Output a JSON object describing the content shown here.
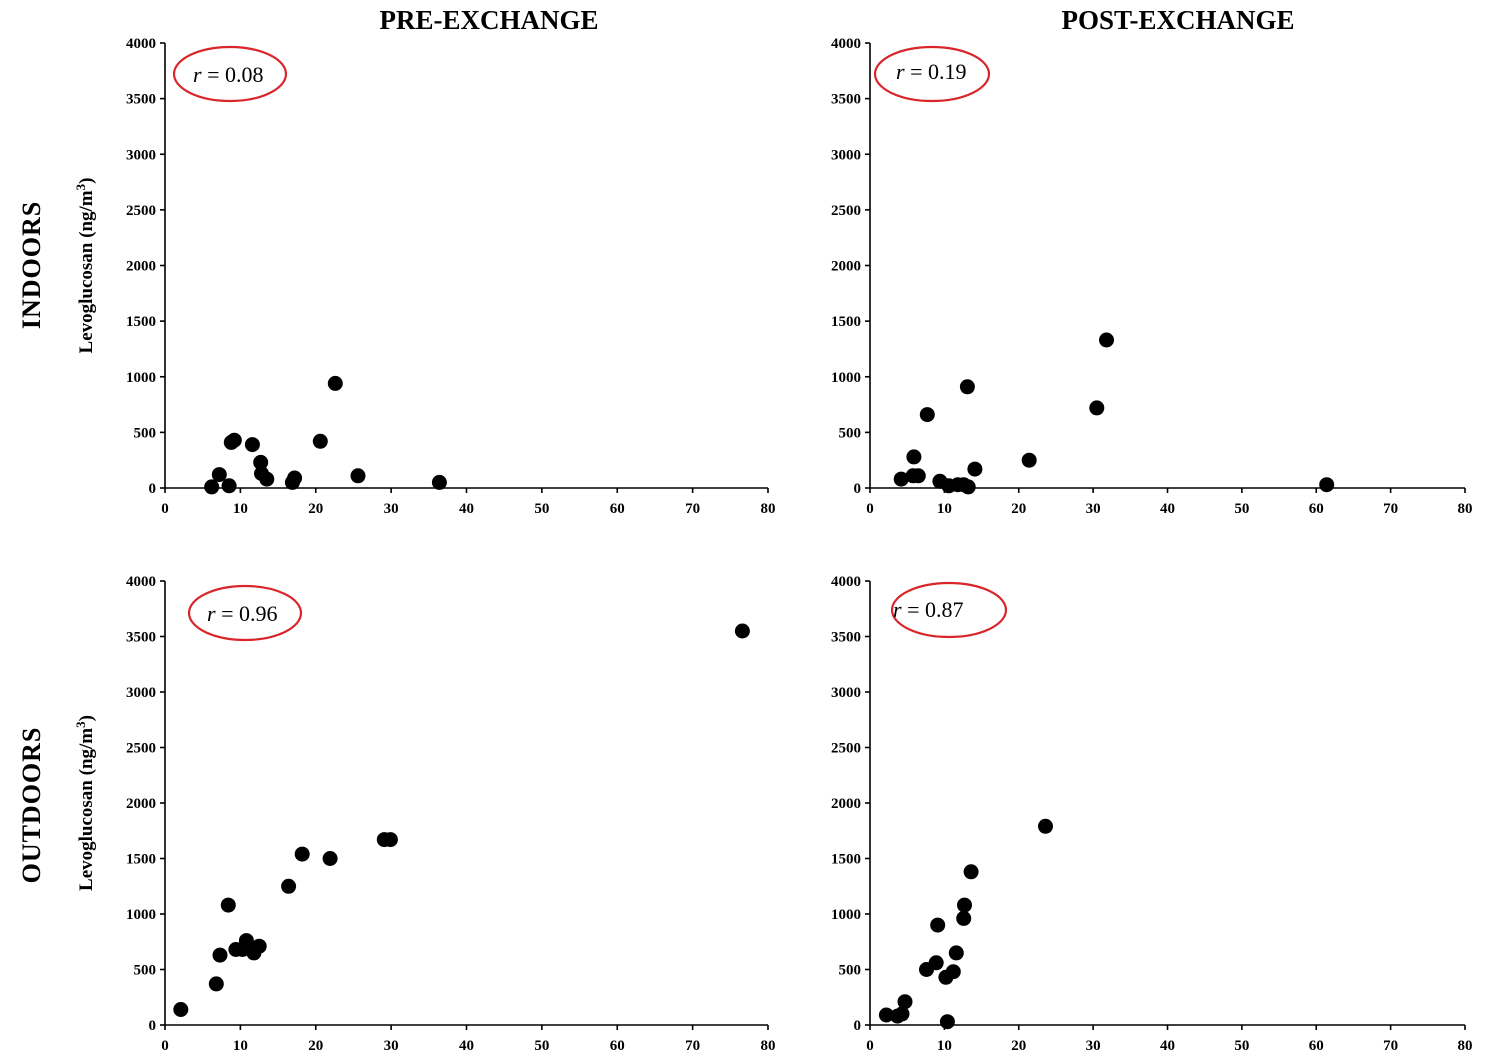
{
  "column_titles": [
    "PRE-EXCHANGE",
    "POST-EXCHANGE"
  ],
  "row_labels": [
    "INDOORS",
    "OUTDOORS"
  ],
  "y_axis_label": {
    "prefix": "Levoglucosan (ng/m",
    "superscript": "3",
    "suffix": ")"
  },
  "accent_color": "#d9262b",
  "chart_data": [
    {
      "type": "scatter",
      "column": "PRE-EXCHANGE",
      "row": "INDOORS",
      "annotation": {
        "r_symbol": "r",
        "equals": " = ",
        "value": "0.08"
      },
      "xlim": [
        0,
        80
      ],
      "ylim": [
        0,
        4000
      ],
      "xticks": [
        0,
        10,
        20,
        30,
        40,
        50,
        60,
        70,
        80
      ],
      "yticks": [
        0,
        500,
        1000,
        1500,
        2000,
        2500,
        3000,
        3500,
        4000
      ],
      "ylabel": "Levoglucosan (ng/m3)",
      "points": [
        [
          6.2,
          10
        ],
        [
          7.2,
          120
        ],
        [
          8.5,
          20
        ],
        [
          8.8,
          410
        ],
        [
          9.2,
          430
        ],
        [
          11.6,
          390
        ],
        [
          12.7,
          230
        ],
        [
          12.8,
          130
        ],
        [
          13.5,
          80
        ],
        [
          16.9,
          50
        ],
        [
          17.2,
          90
        ],
        [
          20.6,
          420
        ],
        [
          22.6,
          940
        ],
        [
          25.6,
          110
        ],
        [
          36.4,
          50
        ]
      ]
    },
    {
      "type": "scatter",
      "column": "POST-EXCHANGE",
      "row": "INDOORS",
      "annotation": {
        "r_symbol": "r",
        "equals": " = ",
        "value": "0.19"
      },
      "xlim": [
        0,
        80
      ],
      "ylim": [
        0,
        4000
      ],
      "xticks": [
        0,
        10,
        20,
        30,
        40,
        50,
        60,
        70,
        80
      ],
      "yticks": [
        0,
        500,
        1000,
        1500,
        2000,
        2500,
        3000,
        3500,
        4000
      ],
      "ylabel": "",
      "points": [
        [
          4.2,
          80
        ],
        [
          5.8,
          110
        ],
        [
          5.9,
          280
        ],
        [
          6.5,
          110
        ],
        [
          7.7,
          660
        ],
        [
          9.4,
          60
        ],
        [
          10.6,
          20
        ],
        [
          11.8,
          30
        ],
        [
          12.6,
          30
        ],
        [
          13.2,
          10
        ],
        [
          13.1,
          910
        ],
        [
          14.1,
          170
        ],
        [
          21.4,
          250
        ],
        [
          30.5,
          720
        ],
        [
          31.8,
          1330
        ],
        [
          61.4,
          30
        ]
      ]
    },
    {
      "type": "scatter",
      "column": "PRE-EXCHANGE",
      "row": "OUTDOORS",
      "annotation": {
        "r_symbol": "r",
        "equals": " = ",
        "value": "0.96"
      },
      "xlim": [
        0,
        80
      ],
      "ylim": [
        0,
        4000
      ],
      "xticks": [
        0,
        10,
        20,
        30,
        40,
        50,
        60,
        70,
        80
      ],
      "yticks": [
        0,
        500,
        1000,
        1500,
        2000,
        2500,
        3000,
        3500,
        4000
      ],
      "ylabel": "Levoglucosan (ng/m3)",
      "points": [
        [
          2.1,
          140
        ],
        [
          6.8,
          370
        ],
        [
          7.3,
          630
        ],
        [
          8.4,
          1080
        ],
        [
          9.4,
          680
        ],
        [
          10.3,
          680
        ],
        [
          10.8,
          760
        ],
        [
          11.3,
          690
        ],
        [
          11.8,
          650
        ],
        [
          12.5,
          710
        ],
        [
          16.4,
          1250
        ],
        [
          18.2,
          1540
        ],
        [
          21.9,
          1500
        ],
        [
          29.1,
          1670
        ],
        [
          29.9,
          1670
        ],
        [
          76.6,
          3550
        ]
      ]
    },
    {
      "type": "scatter",
      "column": "POST-EXCHANGE",
      "row": "OUTDOORS",
      "annotation": {
        "r_symbol": "r",
        "equals": " = ",
        "value": "0.87"
      },
      "xlim": [
        0,
        80
      ],
      "ylim": [
        0,
        4000
      ],
      "xticks": [
        0,
        10,
        20,
        30,
        40,
        50,
        60,
        70,
        80
      ],
      "yticks": [
        0,
        500,
        1000,
        1500,
        2000,
        2500,
        3000,
        3500,
        4000
      ],
      "ylabel": "",
      "points": [
        [
          2.2,
          90
        ],
        [
          3.7,
          80
        ],
        [
          4.3,
          100
        ],
        [
          4.7,
          210
        ],
        [
          7.6,
          500
        ],
        [
          8.9,
          560
        ],
        [
          9.1,
          900
        ],
        [
          10.2,
          430
        ],
        [
          10.4,
          30
        ],
        [
          11.2,
          480
        ],
        [
          11.6,
          650
        ],
        [
          12.6,
          960
        ],
        [
          12.7,
          1080
        ],
        [
          13.6,
          1380
        ],
        [
          23.6,
          1790
        ]
      ]
    }
  ]
}
